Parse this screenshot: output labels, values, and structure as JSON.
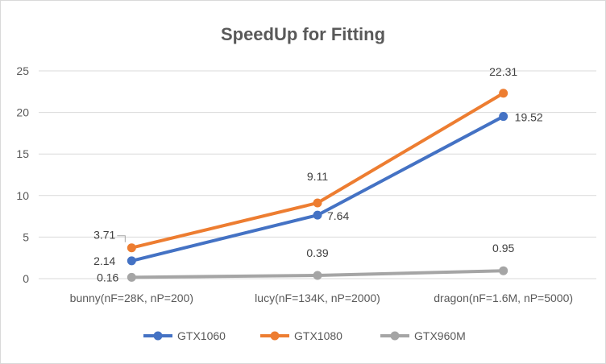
{
  "chart_data": {
    "type": "line",
    "title": "SpeedUp for Fitting",
    "categories": [
      "bunny(nF=28K, nP=200)",
      "lucy(nF=134K, nP=2000)",
      "dragon(nF=1.6M, nP=5000)"
    ],
    "ylim": [
      0,
      25
    ],
    "yticks": [
      0,
      5,
      10,
      15,
      20,
      25
    ],
    "grid": true,
    "legend": "bottom",
    "series": [
      {
        "name": "GTX1060",
        "values": [
          2.14,
          7.64,
          19.52
        ],
        "labels": [
          "2.14",
          "7.64",
          "19.52"
        ],
        "color": "#4472c4"
      },
      {
        "name": "GTX1080",
        "values": [
          3.71,
          9.11,
          22.31
        ],
        "labels": [
          "3.71",
          "9.11",
          "22.31"
        ],
        "color": "#ed7d31"
      },
      {
        "name": "GTX960M",
        "values": [
          0.16,
          0.39,
          0.95
        ],
        "labels": [
          "0.16",
          "0.39",
          "0.95"
        ],
        "color": "#a5a5a5"
      }
    ]
  }
}
